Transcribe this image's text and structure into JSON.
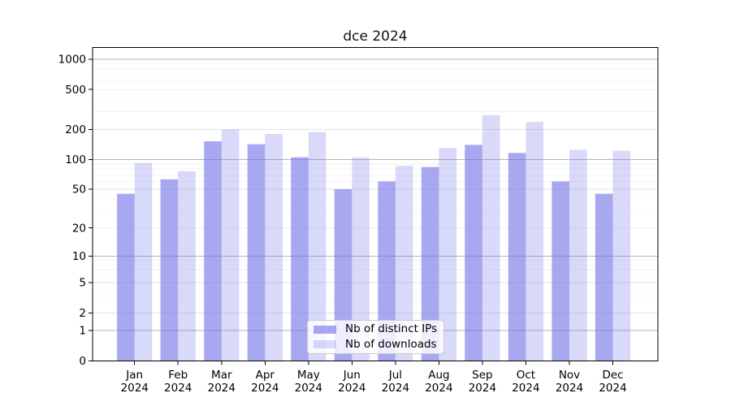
{
  "figure": {
    "title": "dce 2024"
  },
  "chart_data": {
    "type": "bar",
    "title": "dce 2024",
    "categories": [
      "Jan",
      "Feb",
      "Mar",
      "Apr",
      "May",
      "Jun",
      "Jul",
      "Aug",
      "Sep",
      "Oct",
      "Nov",
      "Dec"
    ],
    "year": "2024",
    "series": [
      {
        "name": "Nb of distinct IPs",
        "color": "rgba(120,120,232,0.645)",
        "values": [
          45,
          63,
          152,
          142,
          105,
          50,
          60,
          84,
          140,
          116,
          60,
          45
        ]
      },
      {
        "name": "Nb of downloads",
        "color": "rgba(120,120,232,0.28)",
        "values": [
          92,
          76,
          200,
          180,
          188,
          105,
          86,
          130,
          277,
          237,
          125,
          122
        ]
      }
    ],
    "yscale": "log1p",
    "yticks": [
      0,
      1,
      2,
      5,
      10,
      20,
      50,
      100,
      200,
      500,
      1000
    ],
    "ylim": [
      0,
      1300
    ],
    "grid": true,
    "legend_position": "lower center"
  },
  "colors": {
    "bar_base": "#7878e8",
    "grid_major": "#b3b3b3",
    "grid_secondary": "#e2e2e2",
    "grid_minor": "#f2f2f2",
    "axis_frame": "#000000",
    "tick_label": "#000000"
  }
}
